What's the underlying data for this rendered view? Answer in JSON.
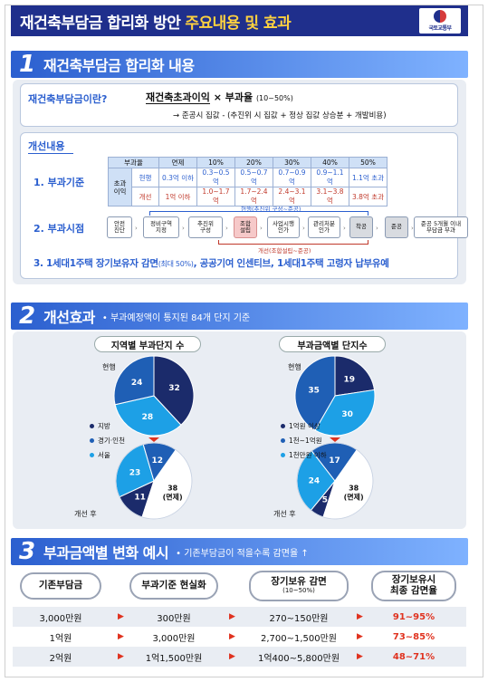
{
  "header": {
    "title_prefix": "재건축부담금 합리화 방안",
    "title_highlight": "주요내용 및 효과",
    "logo_text": "국토교통부"
  },
  "section1": {
    "num": "1",
    "title": "재건축부담금 합리화 내용",
    "definition": {
      "label": "재건축부담금이란?",
      "formula_main": "재건축초과이익",
      "formula_op": "× 부과율",
      "formula_rate": "(10~50%)",
      "note": "→ 준공시 집값 - (추진위 시 집값 + 정상 집값 상승분 + 개발비용)"
    },
    "improvement": {
      "title": "개선내용",
      "row1_label": "1. 부과기준",
      "table": {
        "corner": "부과율",
        "headers": [
          "면제",
          "10%",
          "20%",
          "30%",
          "40%",
          "50%"
        ],
        "cat": "초과\n이익",
        "cur_label": "현행",
        "new_label": "개선",
        "current": [
          "0.3억 이하",
          "0.3~0.5억",
          "0.5~0.7억",
          "0.7~0.9억",
          "0.9~1.1억",
          "1.1억 초과"
        ],
        "improved": [
          "1억 이하",
          "1.0~1.7억",
          "1.7~2.4억",
          "2.4~3.1억",
          "3.1~3.8억",
          "3.8억 초과"
        ]
      },
      "row2_label": "2. 부과시점",
      "flow": [
        "안전\n진단",
        "정비구역\n지정",
        "추진위\n구성",
        "조합\n설립",
        "사업시행\n인가",
        "관리처분\n인가",
        "착공",
        "준공",
        "준공 5개월 이내\n부담금 부과"
      ],
      "flow_note_current": "현행(추진위 구성~준공)",
      "flow_note_new": "개선(조합설립~준공)",
      "row3_label": "3. 1세대1주택 장기보유자 감면",
      "row3_small": "(최대 50%)",
      "row3_rest": ", 공공기여 인센티브, 1세대1주택 고령자 납부유예"
    }
  },
  "section2": {
    "num": "2",
    "title": "개선효과",
    "subtitle": "• 부과예정액이 통지된 84개 단지 기준",
    "chart_data": [
      {
        "type": "pie",
        "title": "지역별 부과단지 수",
        "before_label": "현행",
        "after_label": "개선 후",
        "categories": [
          "지방",
          "경기·인천",
          "서울"
        ],
        "before": [
          32,
          28,
          24
        ],
        "after": [
          11,
          23,
          12
        ],
        "after_exempt": 38,
        "exempt_label": "38\n(면제)",
        "colors": [
          "#1b2b6b",
          "#1da0e6",
          "#1f5fb5"
        ]
      },
      {
        "type": "pie",
        "title": "부과금액별 단지수",
        "before_label": "현행",
        "after_label": "개선 후",
        "categories": [
          "1억원 이상",
          "1천~1억원",
          "1천만원 이하"
        ],
        "before": [
          19,
          30,
          35
        ],
        "after": [
          5,
          24,
          17
        ],
        "after_exempt": 38,
        "exempt_label": "38\n(면제)",
        "colors": [
          "#1b2b6b",
          "#1da0e6",
          "#1f5fb5"
        ]
      }
    ]
  },
  "section3": {
    "num": "3",
    "title": "부과금액별 변화 예시",
    "subtitle": "• 기존부담금이 적을수록 감면율 ↑",
    "headers": [
      "기존부담금",
      "부과기준 현실화",
      "장기보유 감면",
      "장기보유시\n최종 감면율"
    ],
    "header3_small": "(10~50%)",
    "rows": [
      [
        "3,000만원",
        "300만원",
        "270~150만원",
        "91~95%"
      ],
      [
        "1억원",
        "3,000만원",
        "2,700~1,500만원",
        "73~85%"
      ],
      [
        "2억원",
        "1억1,500만원",
        "1억400~5,800만원",
        "48~71%"
      ]
    ]
  }
}
